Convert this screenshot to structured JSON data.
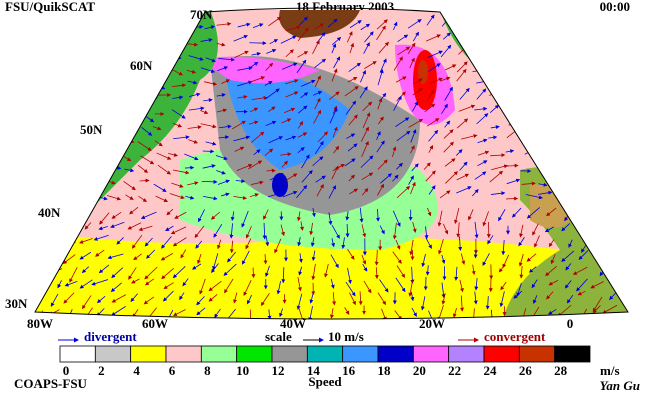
{
  "header": {
    "left": "FSU/QuikSCAT",
    "date": "18 February 2003",
    "time": "00:00"
  },
  "map": {
    "lat_labels": [
      "70N",
      "60N",
      "50N",
      "40N",
      "30N"
    ],
    "lon_labels": [
      "80W",
      "60W",
      "40W",
      "20W",
      "0"
    ]
  },
  "legend": {
    "divergent": "divergent",
    "scale": "scale",
    "scale_value": "10 m/s",
    "convergent": "convergent"
  },
  "colorbar": {
    "colors": [
      "#ffffff",
      "#c8c8c8",
      "#ffff00",
      "#ffc8c8",
      "#96ff96",
      "#00e600",
      "#969696",
      "#00b4b4",
      "#3c96ff",
      "#0000c8",
      "#ff64ff",
      "#b482ff",
      "#ff0000",
      "#c83200",
      "#000000"
    ],
    "ticks": [
      0,
      2,
      4,
      6,
      8,
      10,
      12,
      14,
      16,
      18,
      20,
      22,
      24,
      26,
      28
    ],
    "unit": "m/s",
    "label": "Speed"
  },
  "footer": {
    "credit": "COAPS-FSU",
    "author": "Yan Gu"
  }
}
